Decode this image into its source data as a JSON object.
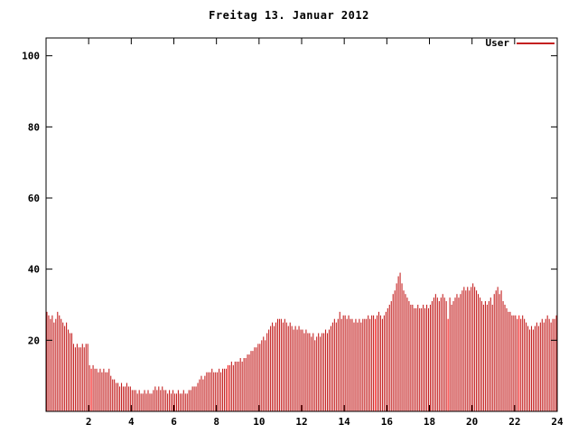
{
  "chart_data": {
    "type": "bar",
    "title": "Freitag 13. Januar 2012",
    "xlabel": "",
    "ylabel": "",
    "xlim": [
      0,
      24
    ],
    "ylim": [
      0,
      105
    ],
    "x_ticks": [
      2,
      4,
      6,
      8,
      10,
      12,
      14,
      16,
      18,
      20,
      22,
      24
    ],
    "y_ticks": [
      20,
      40,
      60,
      80,
      100
    ],
    "grid": false,
    "legend_position": "top-right",
    "bar_color": "#c42020",
    "highlight_color": "#ff1414",
    "sample_interval_hours": 0.0833,
    "highlight_indices": [
      25,
      102,
      185,
      226,
      266
    ],
    "series": [
      {
        "name": "User",
        "values": [
          28,
          27,
          26,
          27,
          25,
          26,
          28,
          27,
          26,
          25,
          24,
          25,
          23,
          22,
          22,
          19,
          18,
          19,
          18,
          18,
          19,
          18,
          19,
          19,
          13,
          12,
          13,
          12,
          12,
          11,
          12,
          11,
          12,
          11,
          11,
          12,
          10,
          9,
          9,
          8,
          8,
          7,
          8,
          7,
          7,
          8,
          7,
          7,
          6,
          6,
          6,
          5,
          6,
          5,
          5,
          6,
          5,
          6,
          5,
          5,
          6,
          7,
          6,
          7,
          6,
          7,
          6,
          6,
          5,
          6,
          5,
          6,
          5,
          5,
          6,
          5,
          5,
          6,
          5,
          5,
          6,
          6,
          7,
          7,
          7,
          8,
          9,
          10,
          9,
          10,
          11,
          11,
          11,
          12,
          11,
          11,
          11,
          12,
          11,
          12,
          12,
          12,
          13,
          13,
          14,
          13,
          14,
          14,
          14,
          15,
          14,
          15,
          15,
          16,
          16,
          17,
          17,
          18,
          18,
          19,
          19,
          20,
          21,
          20,
          22,
          23,
          24,
          25,
          24,
          25,
          26,
          26,
          26,
          25,
          26,
          25,
          24,
          25,
          24,
          23,
          24,
          23,
          24,
          23,
          23,
          22,
          23,
          22,
          22,
          21,
          22,
          20,
          21,
          22,
          21,
          22,
          22,
          23,
          22,
          23,
          24,
          25,
          26,
          25,
          26,
          28,
          26,
          27,
          27,
          26,
          27,
          26,
          26,
          25,
          26,
          25,
          26,
          25,
          26,
          26,
          26,
          27,
          26,
          27,
          27,
          26,
          27,
          28,
          27,
          26,
          27,
          28,
          29,
          30,
          31,
          33,
          34,
          36,
          38,
          39,
          36,
          34,
          33,
          32,
          31,
          30,
          30,
          29,
          29,
          30,
          29,
          29,
          30,
          29,
          30,
          29,
          30,
          31,
          32,
          33,
          32,
          31,
          32,
          33,
          32,
          31,
          26,
          32,
          30,
          31,
          32,
          33,
          32,
          33,
          34,
          35,
          34,
          35,
          34,
          35,
          36,
          35,
          34,
          33,
          32,
          31,
          30,
          31,
          30,
          31,
          32,
          30,
          33,
          34,
          35,
          33,
          34,
          31,
          30,
          29,
          28,
          28,
          27,
          27,
          27,
          26,
          27,
          26,
          27,
          26,
          25,
          24,
          23,
          24,
          23,
          24,
          25,
          24,
          25,
          26,
          25,
          26,
          27,
          26,
          25,
          26,
          26,
          27
        ]
      }
    ]
  }
}
